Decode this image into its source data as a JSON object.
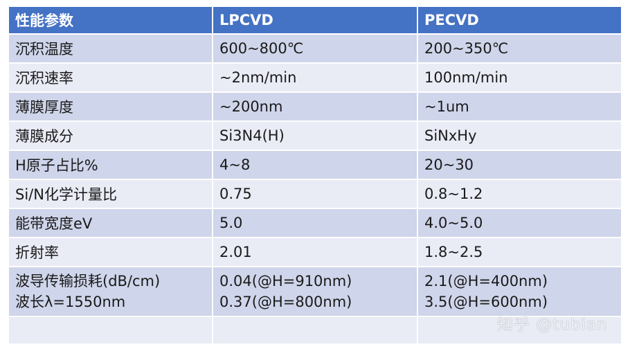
{
  "table": {
    "headers": [
      "性能参数",
      "LPCVD",
      "PECVD"
    ],
    "rows": [
      {
        "param": "沉积温度",
        "lpcvd": "600~800℃",
        "pecvd": "200~350℃"
      },
      {
        "param": "沉积速率",
        "lpcvd": "~2nm/min",
        "pecvd": "100nm/min"
      },
      {
        "param": "薄膜厚度",
        "lpcvd": "~200nm",
        "pecvd": "~1um"
      },
      {
        "param": "薄膜成分",
        "lpcvd": "Si3N4(H)",
        "pecvd": "SiNxHy"
      },
      {
        "param": "H原子占比%",
        "lpcvd": "4~8",
        "pecvd": "20~30"
      },
      {
        "param": "Si/N化学计量比",
        "lpcvd": "0.75",
        "pecvd": "0.8~1.2"
      },
      {
        "param": "能带宽度eV",
        "lpcvd": "5.0",
        "pecvd": "4.0~5.0"
      },
      {
        "param": "折射率",
        "lpcvd": "2.01",
        "pecvd": "1.8~2.5"
      },
      {
        "param_lines": [
          "波导传输损耗(dB/cm)",
          "波长λ=1550nm"
        ],
        "lpcvd_lines": [
          "0.04(@H=910nm)",
          "0.37(@H=800nm)"
        ],
        "pecvd_lines": [
          "2.1(@H=400nm)",
          "3.5(@H=600nm)"
        ]
      },
      {
        "param": "",
        "lpcvd": "",
        "pecvd": ""
      }
    ]
  },
  "watermark": "知乎 @tubian",
  "colors": {
    "header_bg": "#4472c4",
    "row_odd_bg": "#cfd5ea",
    "row_even_bg": "#e9ebf5"
  }
}
